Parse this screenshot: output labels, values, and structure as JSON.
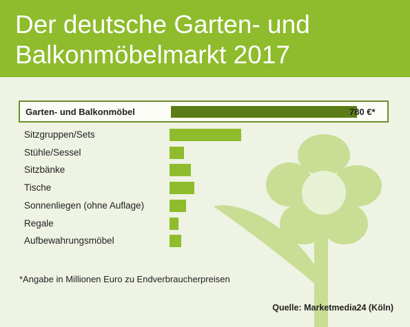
{
  "title": "Der deutsche Garten- und\nBalkonmöbelmarkt 2017",
  "footnote": "*Angabe in Millionen Euro zu Endverbraucherpreisen",
  "source": "Quelle: Marketmedia24 (Köln)",
  "colors": {
    "header": "#8ebc2c",
    "background": "#eef3e3",
    "bar": "#8ebc2c",
    "total_bar": "#5a7c16",
    "flower": "#c9dd95"
  },
  "chart_data": {
    "type": "bar",
    "orientation": "horizontal",
    "total": {
      "label": "Garten- und Balkonmöbel",
      "value": 780,
      "value_label": "780 €*"
    },
    "categories": [
      "Sitzgruppen/Sets",
      "Stühle/Sessel",
      "Sitzbänke",
      "Tische",
      "Sonnenliegen (ohne Auflage)",
      "Regale",
      "Aufbewahrungsmöbel"
    ],
    "values": [
      300,
      60,
      90,
      105,
      70,
      38,
      48
    ],
    "xlim": [
      0,
      780
    ]
  }
}
